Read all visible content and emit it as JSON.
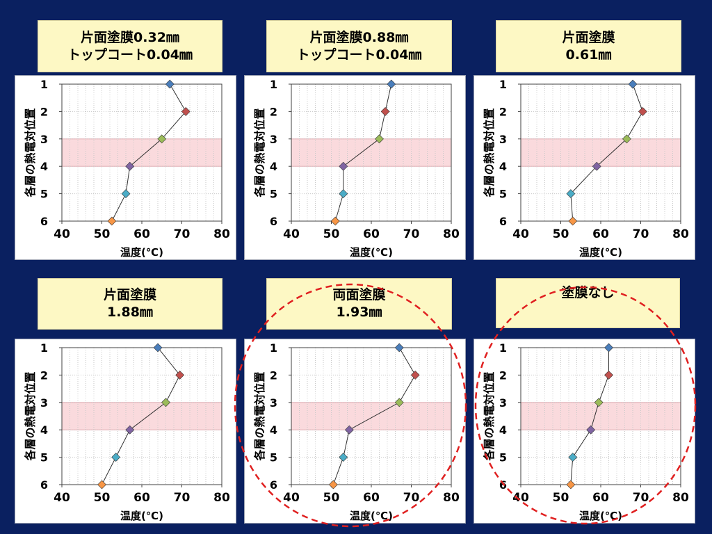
{
  "colors": {
    "background": "#0a2060",
    "label_bg": "#fdf8c4",
    "band": "#fadadd",
    "band_border": "#e8a8b0",
    "circle": "#e02020",
    "marker_colors": [
      "#4a7ebb",
      "#c0504d",
      "#9bbb59",
      "#8064a2",
      "#4bacc6",
      "#f79646"
    ]
  },
  "charts": [
    {
      "label_lines": [
        "片面塗膜0.32㎜",
        "トップコート0.04㎜"
      ],
      "chart_data": {
        "type": "line",
        "title": "片面塗膜0.32㎜ トップコート0.04㎜",
        "xlabel": "温度(℃)",
        "ylabel": "各層の熱電対位置",
        "xlim": [
          40,
          80
        ],
        "ylim": [
          1,
          6
        ],
        "x_ticks": [
          "40",
          "50",
          "60",
          "70",
          "80"
        ],
        "y_ticks": [
          "1",
          "2",
          "3",
          "4",
          "5",
          "6"
        ],
        "highlight_band": [
          3,
          4
        ],
        "grid": "vertical minor",
        "points": [
          {
            "y": 1,
            "x": 67.0
          },
          {
            "y": 2,
            "x": 71.0
          },
          {
            "y": 3,
            "x": 65.0
          },
          {
            "y": 4,
            "x": 57.0
          },
          {
            "y": 5,
            "x": 56.0
          },
          {
            "y": 6,
            "x": 52.5
          }
        ]
      }
    },
    {
      "label_lines": [
        "片面塗膜0.88㎜",
        "トップコート0.04㎜"
      ],
      "chart_data": {
        "type": "line",
        "title": "片面塗膜0.88㎜ トップコート0.04㎜",
        "xlabel": "温度(℃)",
        "ylabel": "各層の熱電対位置",
        "xlim": [
          40,
          80
        ],
        "ylim": [
          1,
          6
        ],
        "x_ticks": [
          "40",
          "50",
          "60",
          "70",
          "80"
        ],
        "y_ticks": [
          "1",
          "2",
          "3",
          "4",
          "5",
          "6"
        ],
        "highlight_band": [
          3,
          4
        ],
        "grid": "vertical minor",
        "points": [
          {
            "y": 1,
            "x": 65.0
          },
          {
            "y": 2,
            "x": 63.5
          },
          {
            "y": 3,
            "x": 62.0
          },
          {
            "y": 4,
            "x": 53.0
          },
          {
            "y": 5,
            "x": 53.0
          },
          {
            "y": 6,
            "x": 51.0
          }
        ]
      }
    },
    {
      "label_lines": [
        "片面塗膜",
        "0.61㎜"
      ],
      "chart_data": {
        "type": "line",
        "title": "片面塗膜 0.61㎜",
        "xlabel": "温度(℃)",
        "ylabel": "各層の熱電対位置",
        "xlim": [
          40,
          80
        ],
        "ylim": [
          1,
          6
        ],
        "x_ticks": [
          "40",
          "50",
          "60",
          "70",
          "80"
        ],
        "y_ticks": [
          "1",
          "2",
          "3",
          "4",
          "5",
          "6"
        ],
        "highlight_band": [
          3,
          4
        ],
        "grid": "vertical minor",
        "points": [
          {
            "y": 1,
            "x": 68.0
          },
          {
            "y": 2,
            "x": 70.5
          },
          {
            "y": 3,
            "x": 66.5
          },
          {
            "y": 4,
            "x": 59.0
          },
          {
            "y": 5,
            "x": 52.5
          },
          {
            "y": 6,
            "x": 53.0
          }
        ]
      }
    },
    {
      "label_lines": [
        "片面塗膜",
        "1.88㎜"
      ],
      "chart_data": {
        "type": "line",
        "title": "片面塗膜 1.88㎜",
        "xlabel": "温度(℃)",
        "ylabel": "各層の熱電対位置",
        "xlim": [
          40,
          80
        ],
        "ylim": [
          1,
          6
        ],
        "x_ticks": [
          "40",
          "50",
          "60",
          "70",
          "80"
        ],
        "y_ticks": [
          "1",
          "2",
          "3",
          "4",
          "5",
          "6"
        ],
        "highlight_band": [
          3,
          4
        ],
        "grid": "vertical minor",
        "points": [
          {
            "y": 1,
            "x": 64.0
          },
          {
            "y": 2,
            "x": 69.5
          },
          {
            "y": 3,
            "x": 66.0
          },
          {
            "y": 4,
            "x": 57.0
          },
          {
            "y": 5,
            "x": 53.5
          },
          {
            "y": 6,
            "x": 50.0
          }
        ]
      }
    },
    {
      "label_lines": [
        "両面塗膜",
        "1.93㎜"
      ],
      "chart_data": {
        "type": "line",
        "title": "両面塗膜 1.93㎜",
        "xlabel": "温度(℃)",
        "ylabel": "各層の熱電対位置",
        "xlim": [
          40,
          80
        ],
        "ylim": [
          1,
          6
        ],
        "x_ticks": [
          "40",
          "50",
          "60",
          "70",
          "80"
        ],
        "y_ticks": [
          "1",
          "2",
          "3",
          "4",
          "5",
          "6"
        ],
        "highlight_band": [
          3,
          4
        ],
        "grid": "vertical minor",
        "points": [
          {
            "y": 1,
            "x": 67.0
          },
          {
            "y": 2,
            "x": 71.0
          },
          {
            "y": 3,
            "x": 67.0
          },
          {
            "y": 4,
            "x": 54.5
          },
          {
            "y": 5,
            "x": 53.0
          },
          {
            "y": 6,
            "x": 50.5
          }
        ]
      }
    },
    {
      "label_lines": [
        "塗膜なし"
      ],
      "chart_data": {
        "type": "line",
        "title": "塗膜なし",
        "xlabel": "温度(℃)",
        "ylabel": "各層の熱電対位置",
        "xlim": [
          40,
          80
        ],
        "ylim": [
          1,
          6
        ],
        "x_ticks": [
          "40",
          "50",
          "60",
          "70",
          "80"
        ],
        "y_ticks": [
          "1",
          "2",
          "3",
          "4",
          "5",
          "6"
        ],
        "highlight_band": [
          3,
          4
        ],
        "grid": "vertical minor",
        "points": [
          {
            "y": 1,
            "x": 62.0
          },
          {
            "y": 2,
            "x": 62.0
          },
          {
            "y": 3,
            "x": 59.5
          },
          {
            "y": 4,
            "x": 57.5
          },
          {
            "y": 5,
            "x": 53.0
          },
          {
            "y": 6,
            "x": 52.5
          }
        ]
      }
    }
  ]
}
